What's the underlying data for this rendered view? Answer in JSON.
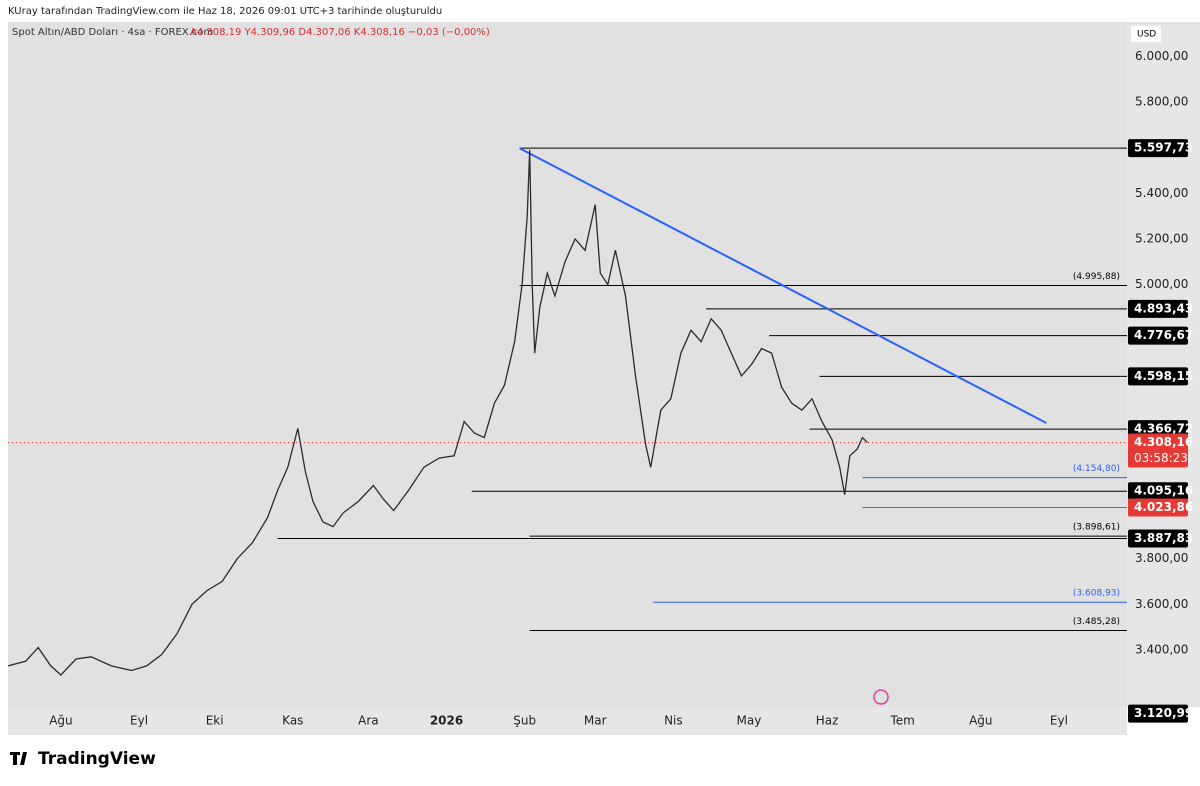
{
  "header": {
    "credit": "KUray tarafından TradingView.com ile Haz 18, 2026 09:01 UTC+3 tarihinde oluşturuldu",
    "brand": "TradingView"
  },
  "chart_data": {
    "type": "line",
    "title": "Spot Altın/ABD Doları · 4sa · FOREX.com",
    "subtitle": "A4.308,19 Y4.309,96 D4.307,06 K4.308,16 −0,03 (−0,00%)",
    "currency": "USD",
    "color": "#2b2b2b",
    "x": [
      -21,
      -14,
      -9,
      -4,
      0,
      6,
      12,
      20,
      28,
      34,
      40,
      46,
      52,
      58,
      64,
      70,
      76,
      82,
      86,
      90,
      94,
      97,
      100,
      104,
      108,
      112,
      118,
      124,
      128,
      132,
      138,
      144,
      150,
      156,
      160,
      164,
      168,
      172,
      176,
      180,
      183,
      185,
      186,
      187,
      188,
      190,
      193,
      196,
      200,
      204,
      208,
      212,
      214,
      217,
      220,
      224,
      228,
      232,
      234,
      238,
      242,
      246,
      250,
      254,
      258,
      262,
      266,
      270,
      274,
      278,
      282,
      286,
      290,
      294,
      298,
      302,
      306,
      309,
      311,
      313,
      316,
      318,
      320
    ],
    "values": [
      3330,
      3350,
      3410,
      3330,
      3290,
      3360,
      3370,
      3330,
      3310,
      3330,
      3380,
      3470,
      3600,
      3660,
      3700,
      3800,
      3870,
      3980,
      4100,
      4200,
      4370,
      4180,
      4050,
      3960,
      3940,
      4000,
      4050,
      4120,
      4060,
      4010,
      4100,
      4200,
      4240,
      4250,
      4400,
      4350,
      4330,
      4480,
      4560,
      4750,
      5000,
      5300,
      5590,
      5000,
      4700,
      4900,
      5050,
      4950,
      5100,
      5200,
      5150,
      5350,
      5050,
      5000,
      5150,
      4950,
      4600,
      4300,
      4200,
      4450,
      4500,
      4700,
      4800,
      4750,
      4850,
      4800,
      4700,
      4600,
      4650,
      4720,
      4700,
      4550,
      4480,
      4450,
      4500,
      4400,
      4320,
      4200,
      4080,
      4250,
      4280,
      4330,
      4308
    ],
    "xlim": [
      -21,
      423
    ],
    "xticks": [
      {
        "value": 0,
        "label": "Ağu"
      },
      {
        "value": 31,
        "label": "Eyl"
      },
      {
        "value": 61,
        "label": "Eki"
      },
      {
        "value": 92,
        "label": "Kas"
      },
      {
        "value": 122,
        "label": "Ara"
      },
      {
        "value": 153,
        "label": "2026"
      },
      {
        "value": 184,
        "label": "Şub"
      },
      {
        "value": 212,
        "label": "Mar"
      },
      {
        "value": 243,
        "label": "Nis"
      },
      {
        "value": 273,
        "label": "May"
      },
      {
        "value": 304,
        "label": "Haz"
      },
      {
        "value": 334,
        "label": "Tem"
      },
      {
        "value": 365,
        "label": "Ağu"
      },
      {
        "value": 396,
        "label": "Eyl"
      }
    ],
    "ylim": [
      3150,
      6150
    ],
    "yticks": [
      {
        "value": 3400,
        "label": "3.400,00"
      },
      {
        "value": 3600,
        "label": "3.600,00"
      },
      {
        "value": 3800,
        "label": "3.800,00"
      },
      {
        "value": 5000,
        "label": "5.000,00"
      },
      {
        "value": 5200,
        "label": "5.200,00"
      },
      {
        "value": 5400,
        "label": "5.400,00"
      },
      {
        "value": 5800,
        "label": "5.800,00"
      },
      {
        "value": 6000,
        "label": "6.000,00"
      }
    ],
    "trendline": {
      "x": [
        182,
        391
      ],
      "values": [
        5597,
        4394
      ],
      "color": "#2962ff"
    },
    "levels": [
      {
        "value": 5597.73,
        "label": "5.597,73",
        "from": 182,
        "color": "#000000",
        "tag": "axis"
      },
      {
        "value": 4995.88,
        "label": "(4.995,88)",
        "from": 182,
        "color": "#000000",
        "tag": "inline"
      },
      {
        "value": 4893.43,
        "label": "4.893,43",
        "from": 256,
        "color": "#000000",
        "tag": "axis"
      },
      {
        "value": 4776.67,
        "label": "4.776,67",
        "from": 281,
        "color": "#000000",
        "tag": "axis"
      },
      {
        "value": 4598.15,
        "label": "4.598,15",
        "from": 301,
        "color": "#000000",
        "tag": "axis"
      },
      {
        "value": 4366.72,
        "label": "4.366,72",
        "from": 297,
        "color": "#000000",
        "tag": "axis"
      },
      {
        "value": 4154.8,
        "label": "(4.154,80)",
        "from": 318,
        "color": "#2962ff",
        "tag": "inline"
      },
      {
        "value": 4095.16,
        "label": "4.095,16",
        "from": 163,
        "color": "#000000",
        "tag": "axis"
      },
      {
        "value": 4023.86,
        "label": "4.023,86",
        "from": 318,
        "color": "#e53935",
        "tag": "axis"
      },
      {
        "value": 3898.61,
        "label": "(3.898,61)",
        "from": 186,
        "color": "#000000",
        "tag": "inline"
      },
      {
        "value": 3887.83,
        "label": "3.887,83",
        "from": 86,
        "color": "#000000",
        "tag": "axis"
      },
      {
        "value": 3608.93,
        "label": "(3.608,93)",
        "from": 235,
        "color": "#2962ff",
        "tag": "inline"
      },
      {
        "value": 3485.28,
        "label": "(3.485,28)",
        "from": 186,
        "color": "#000000",
        "tag": "inline"
      },
      {
        "value": 3120.99,
        "label": "3.120,99",
        "from": null,
        "color": "#000000",
        "tag": "axis"
      }
    ],
    "last": {
      "value": 4308.16,
      "label": "4.308,16",
      "countdown": "03:58:23",
      "color": "#e53935"
    }
  }
}
